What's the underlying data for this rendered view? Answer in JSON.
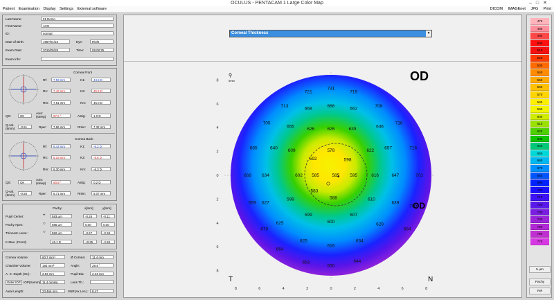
{
  "window": {
    "title": "OCULUS  -  PENTACAM   1 Large Color Map"
  },
  "menu": {
    "left": [
      "Patient",
      "Examination",
      "Display",
      "Settings",
      "External software"
    ],
    "right": [
      "DICOM",
      "IMAGEnet",
      "JPG",
      "Print"
    ]
  },
  "patient": {
    "last_name_label": "Last Name:",
    "last_name": "01 Demo",
    "first_name_label": "First Name:",
    "first_name": "AXG",
    "id_label": "ID:",
    "id": "normal",
    "dob_label": "Date of Birth:",
    "dob": "1957/01/16",
    "eye_label": "Eye:",
    "eye": "Right",
    "exam_date_label": "Exam Date:",
    "exam_date": "2015/05/28",
    "time_label": "Time:",
    "time": "09:08:35",
    "exam_info_label": "Exam Info:",
    "exam_info": ""
  },
  "cornea_front": {
    "title": "Cornea Front",
    "rf_label": "Rf:",
    "rf": "7.59 mm",
    "k1_label": "K1:",
    "k1": "44.5 D",
    "rs_label": "Rs:",
    "rs": "7.42 mm",
    "k2_label": "K2:",
    "k2": "45.5 D",
    "rm_label": "Rm:",
    "rm": "7.51 mm",
    "km_label": "Km:",
    "km": "45.0 D",
    "qs_label": "QS:",
    "qs": "OK",
    "axis_label": "Axis:\n(steep)",
    "axis": "87.5 °",
    "astig_label": "Astig:",
    "astig": "1.0 D",
    "qval_label": "Q-val.\n(8mm)",
    "qval": "-0.51",
    "rper_label": "Rper:",
    "rper": "7.86 mm",
    "rmin_label": "Rmin:",
    "rmin": "7.32 mm"
  },
  "cornea_back": {
    "title": "Cornea Back",
    "rf_label": "Rf:",
    "rf": "6.42 mm",
    "k1_label": "K1:",
    "k1": "-6.2 D",
    "rs_label": "Rs:",
    "rs": "6.19 mm",
    "k2_label": "K2:",
    "k2": "-6.5 D",
    "rm_label": "Rm:",
    "rm": "6.30 mm",
    "km_label": "Km:",
    "km": "-6.3 D",
    "qs_label": "QS:",
    "qs": "OK",
    "axis_label": "Axis:\n(steep)",
    "axis": "90.9 °",
    "astig_label": "Astig:",
    "astig": "0.2 D",
    "qval_label": "Q-val.\n(8mm)",
    "qval": "-0.50",
    "rper_label": "Rper:",
    "rper": "6.71 mm",
    "rmin_label": "Rmin:",
    "rmin": "6.07 mm"
  },
  "pachy": {
    "col_pachy": "Pachy:",
    "col_x": "x[mm]",
    "col_y": "y[mm]",
    "rows": [
      {
        "label": "Pupil Center:",
        "value": "583 µm",
        "x": "-0.26",
        "y": "-0.11"
      },
      {
        "label": "Pachy Apex:",
        "value": "585 µm",
        "x": "0.00",
        "y": "0.00"
      },
      {
        "label": "Thinnest Locat.:",
        "value": "582 µm",
        "x": "-0.57",
        "y": "-0.36"
      },
      {
        "label": "K Max. (Front):",
        "value": "46.1 D",
        "x": "+0.35",
        "y": "-2.86"
      }
    ]
  },
  "volumes": {
    "cornea_volume_label": "Cornea Volume:",
    "cornea_volume": "60.7 mm³",
    "cornea_dia_label": "Ø Cornea:",
    "cornea_dia": "11.4 mm",
    "chamber_volume_label": "Chamber Volume:",
    "chamber_volume": "193 mm³",
    "angle_label": "Angle:",
    "angle": "29.4 °",
    "ac_depth_label": "A. C. Depth (Int.):",
    "ac_depth": "2.53 mm",
    "pupil_dia_label": "Pupil Dia:",
    "pupil_dia": "2.34 mm",
    "enter_iop_label": "Enter IOP",
    "iop_summ_label": "IOP(Summ)",
    "iop": "11.4 mmHg",
    "lens_th_label": "Lens Th.:",
    "lens_th": "",
    "axial_length_label": "Axial Length:",
    "axial_length": "23.466 mm",
    "snr_label": "SNR(Ax.Len.):",
    "snr": "8.47"
  },
  "map": {
    "dropdown": "Corneal Thickness",
    "eye": "OD",
    "zoom_label": "5mm",
    "label_T": "T",
    "label_N": "N",
    "x_ticks": [
      "8",
      "6",
      "4",
      "2",
      "0",
      "2",
      "4",
      "6",
      "8"
    ],
    "y_ticks": [
      "8",
      "6",
      "4",
      "2",
      "0",
      "2",
      "4",
      "6",
      "8"
    ],
    "values": [
      {
        "v": "731",
        "x": 0,
        "y": 7.3
      },
      {
        "v": "721",
        "x": -1.9,
        "y": 7.0
      },
      {
        "v": "719",
        "x": 1.9,
        "y": 7.0
      },
      {
        "v": "713",
        "x": -3.9,
        "y": 5.8
      },
      {
        "v": "708",
        "x": 4.0,
        "y": 5.8
      },
      {
        "v": "705",
        "x": -5.4,
        "y": 4.4
      },
      {
        "v": "718",
        "x": 5.7,
        "y": 4.4
      },
      {
        "v": "685",
        "x": -6.5,
        "y": 2.3
      },
      {
        "v": "716",
        "x": 6.9,
        "y": 2.3
      },
      {
        "v": "668",
        "x": -7.0,
        "y": 0
      },
      {
        "v": "703",
        "x": 7.4,
        "y": 0
      },
      {
        "v": "659",
        "x": -6.6,
        "y": -2.3
      },
      {
        "v": "700",
        "x": 6.9,
        "y": -2.6
      },
      {
        "v": "679",
        "x": -5.6,
        "y": -4.5
      },
      {
        "v": "684",
        "x": 6.4,
        "y": -4.5
      },
      {
        "v": "664",
        "x": -4.3,
        "y": -6.2
      },
      {
        "v": "653",
        "x": -2.1,
        "y": -7.3
      },
      {
        "v": "650",
        "x": 0,
        "y": -7.6
      },
      {
        "v": "644",
        "x": 2.2,
        "y": -7.2
      },
      {
        "v": "668",
        "x": -1.9,
        "y": 5.6
      },
      {
        "v": "666",
        "x": 0,
        "y": 5.8
      },
      {
        "v": "662",
        "x": 1.9,
        "y": 5.6
      },
      {
        "v": "655",
        "x": -3.4,
        "y": 4.1
      },
      {
        "v": "626",
        "x": -1.7,
        "y": 3.9
      },
      {
        "v": "626",
        "x": 0,
        "y": 3.9
      },
      {
        "v": "639",
        "x": 1.8,
        "y": 3.9
      },
      {
        "v": "646",
        "x": 4.1,
        "y": 4.1
      },
      {
        "v": "640",
        "x": -4.8,
        "y": 2.3
      },
      {
        "v": "609",
        "x": -3.3,
        "y": 2.1
      },
      {
        "v": "622",
        "x": 3.3,
        "y": 2.1
      },
      {
        "v": "657",
        "x": 4.8,
        "y": 2.3
      },
      {
        "v": "578",
        "x": 0,
        "y": 2.1
      },
      {
        "v": "592",
        "x": -1.5,
        "y": 1.4
      },
      {
        "v": "598",
        "x": 1.4,
        "y": 1.3
      },
      {
        "v": "634",
        "x": -5.5,
        "y": 0
      },
      {
        "v": "602",
        "x": -2.7,
        "y": 0
      },
      {
        "v": "585",
        "x": -1.3,
        "y": 0
      },
      {
        "v": "585",
        "x": 0.4,
        "y": 0
      },
      {
        "v": "595",
        "x": 1.9,
        "y": 0
      },
      {
        "v": "616",
        "x": 3.7,
        "y": 0
      },
      {
        "v": "647",
        "x": 5.4,
        "y": 0
      },
      {
        "v": "583",
        "x": -1.4,
        "y": -1.3
      },
      {
        "v": "588",
        "x": 0.2,
        "y": -1.9
      },
      {
        "v": "599",
        "x": -3.4,
        "y": -2.0
      },
      {
        "v": "610",
        "x": 3.4,
        "y": -2.0
      },
      {
        "v": "627",
        "x": -5.5,
        "y": -2.3
      },
      {
        "v": "639",
        "x": 5.4,
        "y": -2.3
      },
      {
        "v": "599",
        "x": -1.9,
        "y": -3.3
      },
      {
        "v": "607",
        "x": 1.9,
        "y": -3.3
      },
      {
        "v": "625",
        "x": -4.3,
        "y": -4.0
      },
      {
        "v": "600",
        "x": 0,
        "y": -3.9
      },
      {
        "v": "629",
        "x": 4.1,
        "y": -4.1
      },
      {
        "v": "625",
        "x": -2.3,
        "y": -5.5
      },
      {
        "v": "616",
        "x": 0,
        "y": -5.9
      },
      {
        "v": "634",
        "x": 2.4,
        "y": -5.5
      }
    ]
  },
  "scale": {
    "values": [
      "470",
      "480",
      "490",
      "500",
      "510",
      "520",
      "530",
      "540",
      "550",
      "560",
      "570",
      "580",
      "590",
      "600",
      "610",
      "620",
      "630",
      "640",
      "650",
      "660",
      "670",
      "680",
      "690",
      "700",
      "710",
      "720",
      "730",
      "740",
      "750",
      "760",
      "770"
    ],
    "colors": [
      "#ffb3bb",
      "#ff8f9c",
      "#ff4747",
      "#ff1111",
      "#f51010",
      "#ff3a00",
      "#ff6a00",
      "#ff8c00",
      "#ffa800",
      "#ffc000",
      "#ffd400",
      "#fff000",
      "#f2f400",
      "#cfeb00",
      "#9ae000",
      "#4ed000",
      "#0ec400",
      "#00c878",
      "#00d8d8",
      "#00b8f0",
      "#0090ff",
      "#0055ff",
      "#0022ff",
      "#1a10ff",
      "#3d12f5",
      "#5a18ea",
      "#7a1ee0",
      "#9a24d8",
      "#b028d4",
      "#c030d0",
      "#d838e4"
    ],
    "unit_label": "5 µm",
    "btn_pachy": "Pachy",
    "btn_rel": "Rel"
  }
}
